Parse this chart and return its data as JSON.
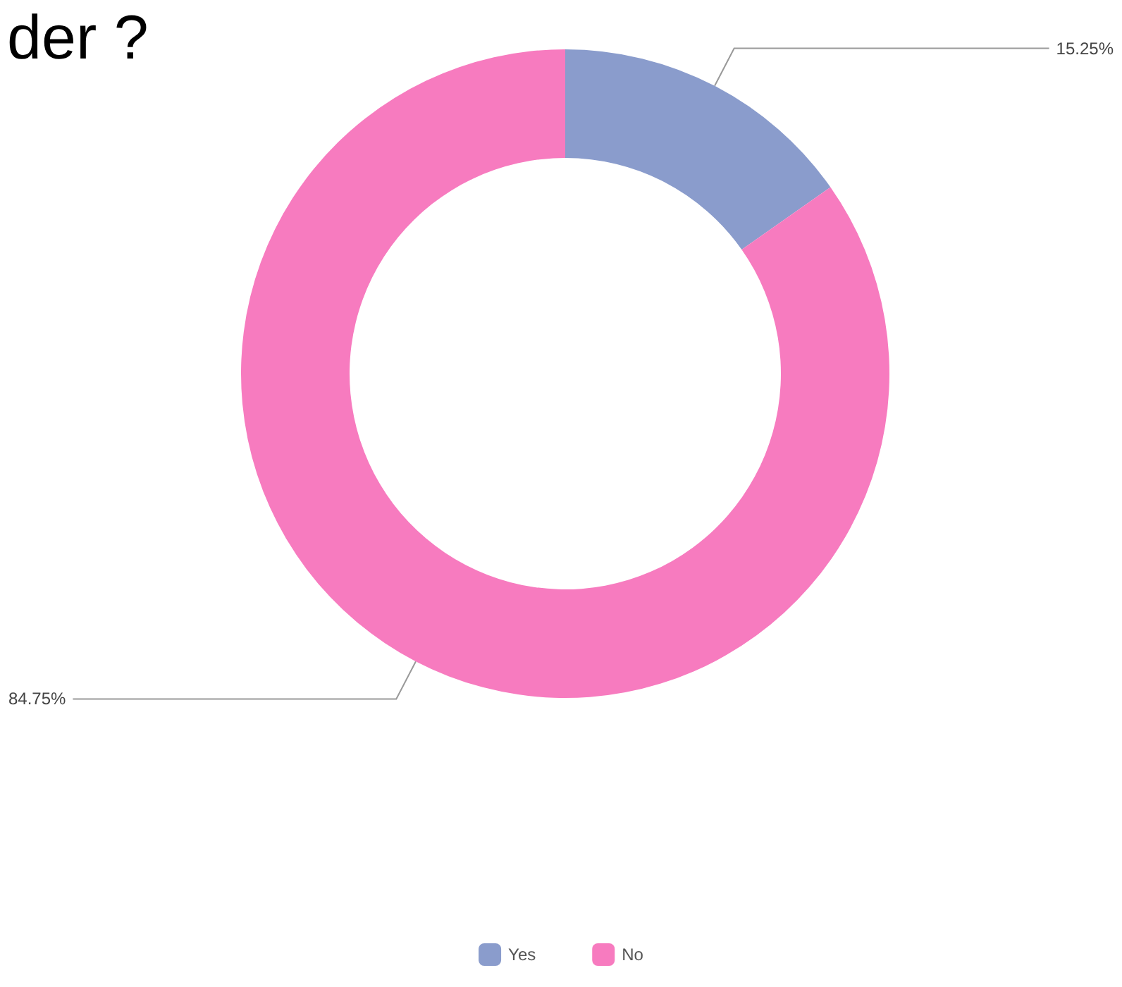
{
  "chart_data": {
    "type": "donut",
    "title": "der ?",
    "categories": [
      "Yes",
      "No"
    ],
    "values": [
      15.25,
      84.75
    ],
    "colors": [
      "#8a9ccc",
      "#f77bbf"
    ],
    "value_labels": [
      "15.25%",
      "84.75%"
    ],
    "legend": "bottom"
  }
}
